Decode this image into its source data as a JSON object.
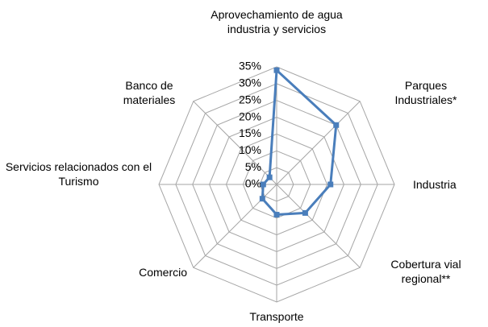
{
  "chart_data": {
    "type": "radar",
    "categories": [
      "Aprovechamiento de agua industria y servicios",
      "Parques Industriales*",
      "Industria",
      "Cobertura vial regional**",
      "Transporte",
      "Comercio",
      "Servicios relacionados con el Turismo",
      "Banco de materiales"
    ],
    "values": [
      34,
      25,
      16,
      12,
      9,
      6,
      4,
      3
    ],
    "color": "#4a7ebb",
    "ylim": [
      0,
      35
    ],
    "yticks": [
      {
        "value": 0,
        "label": "0%"
      },
      {
        "value": 5,
        "label": "5%"
      },
      {
        "value": 10,
        "label": "10%"
      },
      {
        "value": 15,
        "label": "15%"
      },
      {
        "value": 20,
        "label": "20%"
      },
      {
        "value": 25,
        "label": "25%"
      },
      {
        "value": 30,
        "label": "30%"
      },
      {
        "value": 35,
        "label": "35%"
      }
    ],
    "grid": true
  }
}
